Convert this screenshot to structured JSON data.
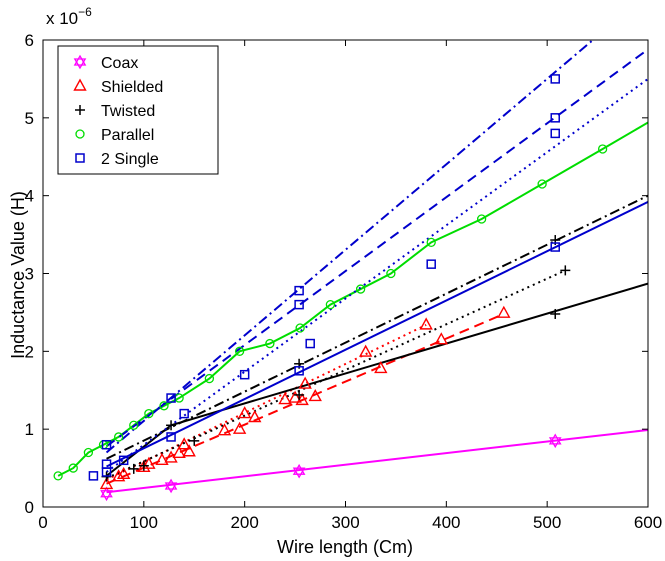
{
  "chart_data": {
    "type": "line",
    "title": "",
    "xlabel": "Wire length (Cm)",
    "ylabel": "Inductance Value (H)",
    "y_multiplier_label": "x 10",
    "y_multiplier_exponent": "−6",
    "xlim": [
      0,
      600
    ],
    "ylim": [
      0,
      6
    ],
    "x_ticks": [
      0,
      100,
      200,
      300,
      400,
      500,
      600
    ],
    "y_ticks": [
      0,
      1,
      2,
      3,
      4,
      5,
      6
    ],
    "grid": false,
    "legend_position": "top-left",
    "series": [
      {
        "name": "Coax",
        "color": "#ff00ff",
        "marker": "hexagram",
        "points": [
          [
            63,
            0.17
          ],
          [
            127,
            0.27
          ],
          [
            254,
            0.46
          ],
          [
            508,
            0.85
          ]
        ],
        "fits": [
          {
            "dash": "solid",
            "x": [
              63,
              600
            ],
            "y": [
              0.19,
              0.99
            ]
          }
        ]
      },
      {
        "name": "Shielded",
        "color": "#ff0000",
        "marker": "triangle",
        "points": [
          [
            63,
            0.29
          ],
          [
            75,
            0.39
          ],
          [
            80,
            0.42
          ],
          [
            100,
            0.51
          ],
          [
            105,
            0.55
          ],
          [
            118,
            0.6
          ],
          [
            127,
            0.63
          ],
          [
            135,
            0.69
          ],
          [
            140,
            0.8
          ],
          [
            145,
            0.71
          ],
          [
            180,
            0.98
          ],
          [
            195,
            1.0
          ],
          [
            200,
            1.2
          ],
          [
            210,
            1.15
          ],
          [
            240,
            1.38
          ],
          [
            250,
            1.4
          ],
          [
            257,
            1.37
          ],
          [
            260,
            1.58
          ],
          [
            270,
            1.42
          ],
          [
            320,
            1.99
          ],
          [
            335,
            1.78
          ],
          [
            380,
            2.34
          ],
          [
            395,
            2.15
          ],
          [
            457,
            2.49
          ]
        ],
        "fits": [
          {
            "dash": "dotted",
            "x": [
              63,
              380
            ],
            "y": [
              0.35,
              2.34
            ]
          },
          {
            "dash": "dashed",
            "x": [
              63,
              457
            ],
            "y": [
              0.3,
              2.48
            ]
          }
        ]
      },
      {
        "name": "Twisted",
        "color": "#000000",
        "marker": "plus",
        "points": [
          [
            63,
            0.39
          ],
          [
            90,
            0.49
          ],
          [
            100,
            0.53
          ],
          [
            127,
            1.05
          ],
          [
            150,
            0.85
          ],
          [
            254,
            1.84
          ],
          [
            254,
            1.44
          ],
          [
            508,
            3.43
          ],
          [
            508,
            2.48
          ],
          [
            518,
            3.04
          ]
        ],
        "fits": [
          {
            "dash": "solid",
            "x": [
              63,
              127,
              600
            ],
            "y": [
              0.4,
              1.05,
              2.87
            ]
          },
          {
            "dash": "dashdot",
            "x": [
              63,
              600
            ],
            "y": [
              0.62,
              4.0
            ]
          },
          {
            "dash": "dotted",
            "x": [
              63,
              518
            ],
            "y": [
              0.37,
              3.04
            ]
          }
        ]
      },
      {
        "name": "Parallel",
        "color": "#00dd00",
        "marker": "circle",
        "points": [
          [
            15,
            0.4
          ],
          [
            30,
            0.5
          ],
          [
            45,
            0.7
          ],
          [
            60,
            0.8
          ],
          [
            75,
            0.9
          ],
          [
            90,
            1.05
          ],
          [
            105,
            1.2
          ],
          [
            120,
            1.3
          ],
          [
            135,
            1.4
          ],
          [
            165,
            1.65
          ],
          [
            195,
            2.0
          ],
          [
            225,
            2.1
          ],
          [
            255,
            2.3
          ],
          [
            285,
            2.6
          ],
          [
            315,
            2.8
          ],
          [
            345,
            3.0
          ],
          [
            385,
            3.4
          ],
          [
            435,
            3.7
          ],
          [
            495,
            4.15
          ],
          [
            555,
            4.6
          ]
        ],
        "line": {
          "dash": "solid",
          "x_end": 600,
          "y_end": 4.94
        }
      },
      {
        "name": "2 Single",
        "color": "#0000cc",
        "marker": "square",
        "points": [
          [
            50,
            0.4
          ],
          [
            63,
            0.45
          ],
          [
            63,
            0.55
          ],
          [
            63,
            0.8
          ],
          [
            80,
            0.6
          ],
          [
            127,
            0.9
          ],
          [
            127,
            1.4
          ],
          [
            140,
            1.2
          ],
          [
            200,
            1.7
          ],
          [
            254,
            1.75
          ],
          [
            254,
            2.6
          ],
          [
            254,
            2.78
          ],
          [
            265,
            2.1
          ],
          [
            385,
            3.12
          ],
          [
            508,
            3.34
          ],
          [
            508,
            4.8
          ],
          [
            508,
            5.0
          ],
          [
            508,
            5.5
          ]
        ],
        "fits": [
          {
            "dash": "solid",
            "x": [
              63,
              600
            ],
            "y": [
              0.52,
              3.92
            ]
          },
          {
            "dash": "dotted",
            "x": [
              63,
              600
            ],
            "y": [
              0.45,
              5.5
            ]
          },
          {
            "dash": "dashed",
            "x": [
              63,
              600
            ],
            "y": [
              0.78,
              5.88
            ]
          },
          {
            "dash": "dashdot",
            "x": [
              63,
              600
            ],
            "y": [
              0.7,
              6.6
            ]
          }
        ]
      }
    ]
  }
}
